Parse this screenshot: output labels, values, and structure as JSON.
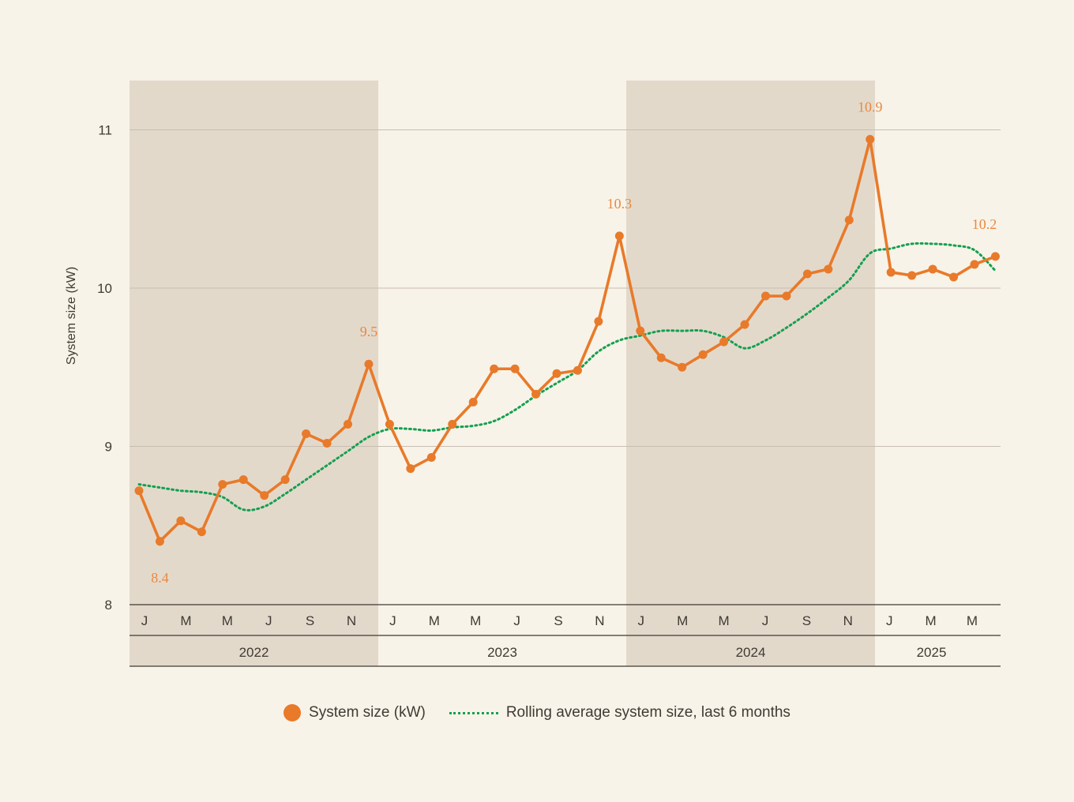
{
  "chart_data": {
    "type": "line",
    "y_axis_label": "System size (kW)",
    "y_ticks": [
      8,
      9,
      10,
      11
    ],
    "ylim": [
      8,
      11.3
    ],
    "years": [
      "2022",
      "2023",
      "2024",
      "2025"
    ],
    "month_ticks": [
      "J",
      "M",
      "M",
      "J",
      "S",
      "N",
      "J",
      "M",
      "M",
      "J",
      "S",
      "N",
      "J",
      "M",
      "M",
      "J",
      "S",
      "N",
      "J",
      "M",
      "M"
    ],
    "series": [
      {
        "name": "System size (kW)",
        "color": "#e87a2a",
        "values": [
          8.72,
          8.4,
          8.53,
          8.46,
          8.76,
          8.79,
          8.69,
          8.79,
          9.08,
          9.02,
          9.14,
          9.52,
          9.14,
          8.86,
          8.93,
          9.14,
          9.28,
          9.49,
          9.49,
          9.33,
          9.46,
          9.48,
          9.79,
          10.33,
          9.73,
          9.56,
          9.5,
          9.58,
          9.66,
          9.77,
          9.95,
          9.95,
          10.09,
          10.12,
          10.43,
          10.94,
          10.1,
          10.08,
          10.12,
          10.07,
          10.15,
          10.2
        ]
      },
      {
        "name": "Rolling average system size, last 6 months",
        "color": "#14a050",
        "values": [
          8.76,
          8.74,
          8.72,
          8.71,
          8.68,
          8.6,
          8.62,
          8.7,
          8.79,
          8.88,
          8.97,
          9.06,
          9.11,
          9.11,
          9.1,
          9.12,
          9.13,
          9.16,
          9.23,
          9.32,
          9.4,
          9.48,
          9.6,
          9.67,
          9.7,
          9.73,
          9.73,
          9.73,
          9.69,
          9.62,
          9.67,
          9.75,
          9.84,
          9.94,
          10.05,
          10.22,
          10.25,
          10.28,
          10.28,
          10.27,
          10.24,
          10.11
        ]
      }
    ],
    "annotations": [
      {
        "index": 1,
        "text": "8.4",
        "placement": "below"
      },
      {
        "index": 11,
        "text": "9.5",
        "placement": "above"
      },
      {
        "index": 23,
        "text": "10.3",
        "placement": "above"
      },
      {
        "index": 35,
        "text": "10.9",
        "placement": "above"
      },
      {
        "index": 41,
        "text": "10.2",
        "placement": "above"
      }
    ]
  },
  "legend": {
    "items": [
      {
        "label": "System size (kW)",
        "color": "#e87a2a"
      },
      {
        "label": "Rolling average system size, last 6 months",
        "color": "#14a050"
      }
    ]
  }
}
